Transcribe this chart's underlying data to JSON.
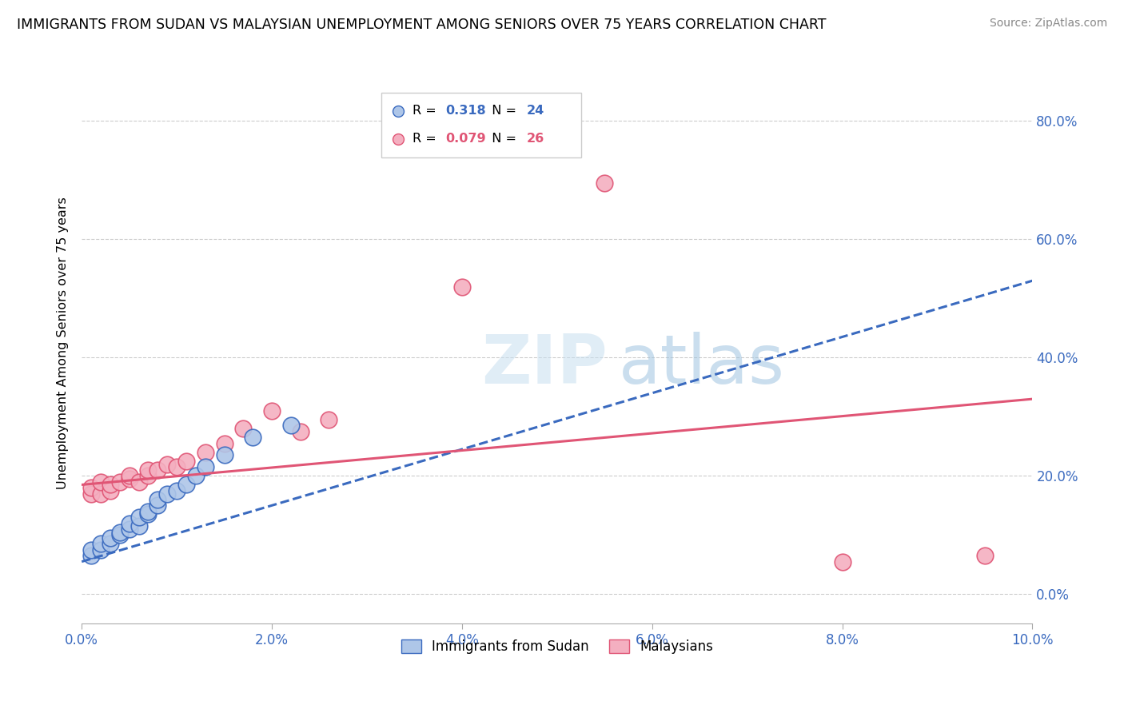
{
  "title": "IMMIGRANTS FROM SUDAN VS MALAYSIAN UNEMPLOYMENT AMONG SENIORS OVER 75 YEARS CORRELATION CHART",
  "source": "Source: ZipAtlas.com",
  "ylabel": "Unemployment Among Seniors over 75 years",
  "xlim": [
    0.0,
    0.1
  ],
  "ylim": [
    -0.05,
    0.9
  ],
  "xticks": [
    0.0,
    0.02,
    0.04,
    0.06,
    0.08,
    0.1
  ],
  "xtick_labels": [
    "0.0%",
    "2.0%",
    "4.0%",
    "6.0%",
    "8.0%",
    "10.0%"
  ],
  "yticks": [
    0.0,
    0.2,
    0.4,
    0.6,
    0.8
  ],
  "ytick_labels": [
    "0.0%",
    "20.0%",
    "40.0%",
    "60.0%",
    "80.0%"
  ],
  "series1_color": "#aec6e8",
  "series2_color": "#f4afc0",
  "trendline1_color": "#3a6abf",
  "trendline2_color": "#e05575",
  "watermark_zip": "ZIP",
  "watermark_atlas": "atlas",
  "sudan_x": [
    0.001,
    0.001,
    0.002,
    0.002,
    0.003,
    0.003,
    0.004,
    0.004,
    0.005,
    0.005,
    0.006,
    0.006,
    0.007,
    0.007,
    0.008,
    0.008,
    0.009,
    0.01,
    0.011,
    0.012,
    0.013,
    0.015,
    0.018,
    0.022
  ],
  "sudan_y": [
    0.065,
    0.075,
    0.075,
    0.085,
    0.085,
    0.095,
    0.1,
    0.105,
    0.11,
    0.12,
    0.115,
    0.13,
    0.135,
    0.14,
    0.15,
    0.16,
    0.17,
    0.175,
    0.185,
    0.2,
    0.215,
    0.235,
    0.265,
    0.285
  ],
  "malaysia_x": [
    0.001,
    0.001,
    0.002,
    0.002,
    0.003,
    0.003,
    0.004,
    0.005,
    0.005,
    0.006,
    0.007,
    0.007,
    0.008,
    0.009,
    0.01,
    0.011,
    0.013,
    0.015,
    0.017,
    0.02,
    0.023,
    0.026,
    0.04,
    0.055,
    0.08,
    0.095
  ],
  "malaysia_y": [
    0.17,
    0.18,
    0.17,
    0.19,
    0.175,
    0.185,
    0.19,
    0.195,
    0.2,
    0.19,
    0.2,
    0.21,
    0.21,
    0.22,
    0.215,
    0.225,
    0.24,
    0.255,
    0.28,
    0.31,
    0.275,
    0.295,
    0.52,
    0.695,
    0.055,
    0.065
  ],
  "sudan_trendline": [
    0.0,
    0.1,
    0.055,
    0.53
  ],
  "malaysia_trendline": [
    0.0,
    0.1,
    0.185,
    0.33
  ],
  "legend_r1_val": "0.318",
  "legend_n1_val": "24",
  "legend_r2_val": "0.079",
  "legend_n2_val": "26"
}
